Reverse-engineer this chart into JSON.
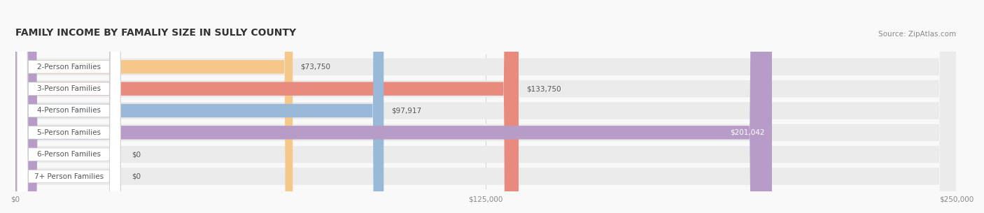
{
  "title": "FAMILY INCOME BY FAMALIY SIZE IN SULLY COUNTY",
  "source": "Source: ZipAtlas.com",
  "categories": [
    "2-Person Families",
    "3-Person Families",
    "4-Person Families",
    "5-Person Families",
    "6-Person Families",
    "7+ Person Families"
  ],
  "values": [
    73750,
    133750,
    97917,
    201042,
    0,
    0
  ],
  "bar_colors": [
    "#f5c98a",
    "#e88a7d",
    "#9ab8d8",
    "#b89cc8",
    "#7ececa",
    "#b8b8d8"
  ],
  "bar_bg_color": "#ebebeb",
  "label_bg_color": "#ffffff",
  "label_text_color": "#555555",
  "value_text_color_inside": "#ffffff",
  "value_text_color_outside": "#555555",
  "xlim": [
    0,
    250000
  ],
  "xticks": [
    0,
    125000,
    250000
  ],
  "xtick_labels": [
    "$0",
    "$125,000",
    "$250,000"
  ],
  "title_fontsize": 10,
  "source_fontsize": 7.5,
  "bar_label_fontsize": 7.5,
  "value_fontsize": 7.5,
  "figsize": [
    14.06,
    3.05
  ],
  "dpi": 100
}
